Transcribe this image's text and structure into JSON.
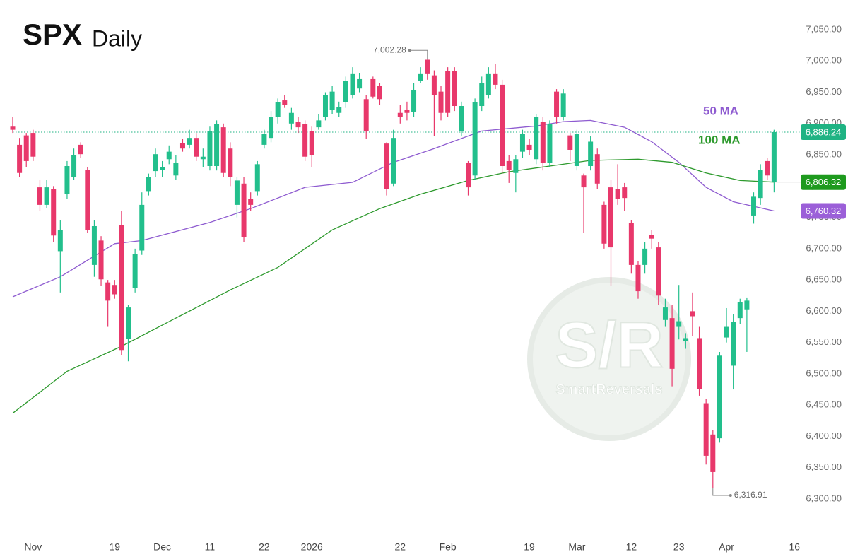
{
  "chart_data": {
    "type": "candlestick",
    "title": "SPX",
    "subtitle": "Daily",
    "xlim": [
      -1.87,
      115.6
    ],
    "ylim": [
      6300,
      7050
    ],
    "yticks": [
      {
        "value": 6300,
        "label": "6,300.00"
      },
      {
        "value": 6350,
        "label": "6,350.00"
      },
      {
        "value": 6400,
        "label": "6,400.00"
      },
      {
        "value": 6450,
        "label": "6,450.00"
      },
      {
        "value": 6500,
        "label": "6,500.00"
      },
      {
        "value": 6550,
        "label": "6,550.00"
      },
      {
        "value": 6600,
        "label": "6,600.00"
      },
      {
        "value": 6650,
        "label": "6,650.00"
      },
      {
        "value": 6700,
        "label": "6,700.00"
      },
      {
        "value": 6750,
        "label": "6,750.00"
      },
      {
        "value": 6800,
        "label": "6,800.00"
      },
      {
        "value": 6850,
        "label": "6,850.00"
      },
      {
        "value": 6900,
        "label": "6,900.00"
      },
      {
        "value": 6950,
        "label": "6,950.00"
      },
      {
        "value": 7000,
        "label": "7,000.00"
      },
      {
        "value": 7050,
        "label": "7,050.00"
      }
    ],
    "xticks": [
      {
        "value": 3,
        "label": "Nov"
      },
      {
        "value": 15,
        "label": "19"
      },
      {
        "value": 22,
        "label": "Dec"
      },
      {
        "value": 29,
        "label": "11"
      },
      {
        "value": 37,
        "label": "22"
      },
      {
        "value": 44,
        "label": "2026"
      },
      {
        "value": 57,
        "label": "22"
      },
      {
        "value": 64,
        "label": "Feb"
      },
      {
        "value": 76,
        "label": "19"
      },
      {
        "value": 83,
        "label": "Mar"
      },
      {
        "value": 91,
        "label": "12"
      },
      {
        "value": 98,
        "label": "23"
      },
      {
        "value": 105,
        "label": "Apr"
      },
      {
        "value": 115,
        "label": "16"
      }
    ],
    "grid": false,
    "candles": {
      "up_color": "#22bf8c",
      "down_color": "#e8386b",
      "x": [
        0,
        1,
        2,
        3,
        4,
        5,
        6,
        7,
        8,
        9,
        10,
        11,
        12,
        13,
        14,
        15,
        16,
        17,
        18,
        19,
        20,
        21,
        22,
        23,
        24,
        25,
        26,
        27,
        28,
        29,
        30,
        31,
        32,
        33,
        34,
        35,
        36,
        37,
        38,
        39,
        40,
        41,
        42,
        43,
        44,
        45,
        46,
        47,
        48,
        49,
        50,
        51,
        52,
        53,
        54,
        55,
        56,
        57,
        58,
        59,
        60,
        61,
        62,
        63,
        64,
        65,
        66,
        67,
        68,
        69,
        70,
        71,
        72,
        73,
        74,
        75,
        76,
        77,
        78,
        79,
        80,
        81,
        82,
        83,
        84,
        85,
        86,
        87,
        88,
        89,
        90,
        91,
        92,
        93,
        94,
        95,
        96,
        97,
        98,
        99,
        100,
        101,
        102,
        103,
        104,
        105,
        106,
        107,
        108,
        109,
        110,
        111,
        112
      ],
      "open": [
        6895,
        6866,
        6881,
        6885,
        6798,
        6770,
        6795,
        6696,
        6787,
        6815,
        6866,
        6826,
        6674,
        6713,
        6646,
        6642,
        6738,
        6556,
        6637,
        6697,
        6792,
        6824,
        6826,
        6843,
        6817,
        6869,
        6866,
        6877,
        6843,
        6832,
        6832,
        6894,
        6860,
        6770,
        6804,
        6779,
        6792,
        6866,
        6877,
        6911,
        6937,
        6900,
        6903,
        6899,
        6888,
        6894,
        6911,
        6922,
        6917,
        6934,
        6945,
        6956,
        6939,
        6971,
        6960,
        6868,
        6804,
        6917,
        6922,
        6919,
        6968,
        7002,
        6977,
        6951,
        6984,
        6984,
        6888,
        6837,
        6817,
        6928,
        6945,
        6979,
        6962,
        6840,
        6821,
        6855,
        6866,
        6843,
        6903,
        6837,
        6951,
        6911,
        6881,
        6832,
        6817,
        6832,
        6851,
        6770,
        6798,
        6795,
        6798,
        6741,
        6674,
        6674,
        6722,
        6702,
        6586,
        6589,
        6575,
        6553,
        6600,
        6557,
        6453,
        6403,
        6397,
        6558,
        6513,
        6589,
        6603,
        6753,
        6781,
        6840,
        6806
      ],
      "high": [
        6910,
        6877,
        6885,
        6890,
        6810,
        6810,
        6800,
        6745,
        6840,
        6860,
        6870,
        6830,
        6745,
        6720,
        6650,
        6650,
        6760,
        6610,
        6700,
        6790,
        6820,
        6860,
        6840,
        6865,
        6850,
        6875,
        6890,
        6885,
        6860,
        6895,
        6905,
        6900,
        6870,
        6815,
        6815,
        6790,
        6840,
        6890,
        6920,
        6940,
        6945,
        6925,
        6910,
        6905,
        6895,
        6915,
        6950,
        6960,
        6935,
        6975,
        6990,
        6980,
        6945,
        6975,
        6965,
        6870,
        6890,
        6930,
        6935,
        6965,
        6990,
        7002.28,
        6985,
        6960,
        6990,
        6990,
        6935,
        6840,
        6940,
        6975,
        6990,
        6995,
        6970,
        6850,
        6850,
        6890,
        6875,
        6915,
        6910,
        6905,
        6955,
        6955,
        6885,
        6890,
        6820,
        6880,
        6860,
        6775,
        6810,
        6835,
        6805,
        6745,
        6680,
        6710,
        6730,
        6710,
        6620,
        6610,
        6642,
        6565,
        6630,
        6575,
        6460,
        6410,
        6535,
        6605,
        6595,
        6620,
        6622,
        6790,
        6835,
        6845,
        6890
      ],
      "low": [
        6885,
        6815,
        6830,
        6840,
        6760,
        6765,
        6710,
        6630,
        6780,
        6810,
        6845,
        6725,
        6655,
        6640,
        6575,
        6620,
        6530,
        6520,
        6630,
        6690,
        6785,
        6815,
        6815,
        6835,
        6810,
        6855,
        6860,
        6840,
        6830,
        6825,
        6825,
        6815,
        6800,
        6750,
        6710,
        6760,
        6785,
        6860,
        6870,
        6900,
        6925,
        6890,
        6885,
        6840,
        6830,
        6890,
        6905,
        6915,
        6910,
        6925,
        6940,
        6950,
        6875,
        6940,
        6930,
        6785,
        6800,
        6900,
        6905,
        6910,
        6965,
        6970,
        6880,
        6905,
        6910,
        6920,
        6880,
        6785,
        6810,
        6920,
        6940,
        6955,
        6820,
        6805,
        6790,
        6845,
        6850,
        6835,
        6825,
        6830,
        6900,
        6905,
        6840,
        6825,
        6725,
        6825,
        6795,
        6700,
        6640,
        6770,
        6760,
        6660,
        6620,
        6660,
        6700,
        6610,
        6575,
        6480,
        6555,
        6540,
        6560,
        6465,
        6355,
        6316.91,
        6390,
        6550,
        6475,
        6580,
        6535,
        6740,
        6770,
        6810,
        6790
      ],
      "close": [
        6890,
        6821,
        6840,
        6847,
        6770,
        6798,
        6721,
        6730,
        6832,
        6849,
        6851,
        6730,
        6736,
        6651,
        6617,
        6627,
        6538,
        6606,
        6691,
        6770,
        6815,
        6851,
        6830,
        6855,
        6837,
        6860,
        6877,
        6847,
        6847,
        6888,
        6899,
        6821,
        6815,
        6809,
        6719,
        6770,
        6835,
        6883,
        6911,
        6934,
        6930,
        6917,
        6894,
        6847,
        6849,
        6905,
        6945,
        6951,
        6926,
        6968,
        6979,
        6971,
        6888,
        6943,
        6939,
        6795,
        6877,
        6911,
        6917,
        6954,
        6979,
        6979,
        6945,
        6917,
        6917,
        6928,
        6928,
        6798,
        6934,
        6965,
        6979,
        6962,
        6832,
        6826,
        6843,
        6883,
        6858,
        6911,
        6837,
        6899,
        6911,
        6948,
        6858,
        6883,
        6798,
        6871,
        6804,
        6708,
        6702,
        6779,
        6781,
        6674,
        6632,
        6700,
        6716,
        6625,
        6606,
        6508,
        6584,
        6557,
        6592,
        6476,
        6369,
        6343,
        6529,
        6575,
        6583,
        6614,
        6617,
        6783,
        6826,
        6817,
        6886.24
      ]
    },
    "series": [
      {
        "name": "50 MA",
        "color": "#8e5bd0",
        "x": [
          0,
          7,
          15,
          19,
          29,
          35,
          43,
          50,
          56,
          62,
          69,
          77,
          81,
          85,
          90,
          94,
          98,
          102,
          106,
          112
        ],
        "values": [
          6623,
          6655,
          6708,
          6713,
          6742,
          6764,
          6798,
          6806,
          6838,
          6860,
          6888,
          6896,
          6903,
          6905,
          6894,
          6871,
          6838,
          6798,
          6775,
          6760.32
        ]
      },
      {
        "name": "100 MA",
        "color": "#2e9a2e",
        "x": [
          0,
          8,
          16,
          24,
          32,
          39,
          47,
          54,
          60,
          67,
          73,
          79,
          85,
          92,
          97,
          102,
          107,
          112
        ],
        "values": [
          6437,
          6504,
          6544,
          6589,
          6634,
          6670,
          6730,
          6764,
          6787,
          6809,
          6823,
          6832,
          6841,
          6843,
          6838,
          6821,
          6809,
          6806.32
        ]
      }
    ],
    "price_labels": [
      {
        "value": 6886.24,
        "label": "6,886.24",
        "color": "#1fb383"
      },
      {
        "value": 6806.32,
        "label": "6,806.32",
        "color": "#1e9a1e"
      },
      {
        "value": 6760.32,
        "label": "6,760.32",
        "color": "#9b5fd8"
      }
    ],
    "annotations": [
      {
        "x": 61,
        "value": 7002.28,
        "label": "7,002.28"
      },
      {
        "x": 103,
        "value": 6316.91,
        "label": "6,316.91"
      }
    ],
    "watermark": {
      "mark": "S/R",
      "brand": "SmartReversals"
    }
  }
}
